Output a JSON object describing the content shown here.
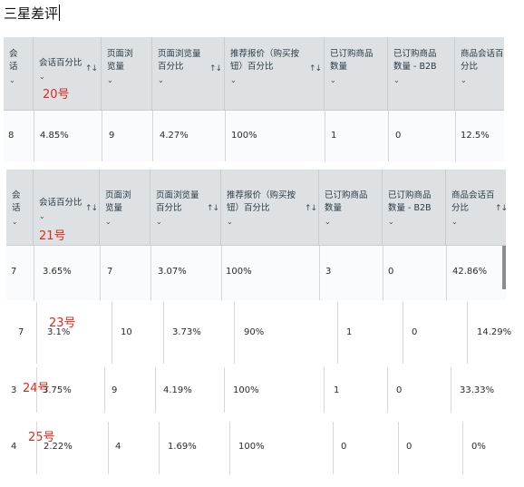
{
  "title": "三星差评",
  "headers": {
    "sessions": [
      "会",
      "话"
    ],
    "session_pct": "会话百分比",
    "page_views": [
      "页面浏",
      "览量"
    ],
    "page_view_pct": [
      "页面浏览量",
      "百分比"
    ],
    "featured_offer": [
      "推荐报价（购买按",
      "钮）百分比"
    ],
    "units_ordered": [
      "已订购商品",
      "数量"
    ],
    "units_b2b": [
      "已订购商品",
      "数量 - B2B"
    ],
    "unit_session_pct": [
      "商品会话百",
      "分比"
    ]
  },
  "sort_glyph": "↑↓",
  "chevron": "⌄",
  "days": [
    "20号",
    "21号",
    "23号",
    "24号",
    "25号"
  ],
  "rows": [
    {
      "sessions": "8",
      "session_pct": "4.85%",
      "page_views": "9",
      "page_view_pct": "4.27%",
      "featured_offer": "100%",
      "units_ordered": "1",
      "units_b2b": "0",
      "unit_session_pct": "12.5%"
    },
    {
      "sessions": "7",
      "session_pct": "3.65%",
      "page_views": "7",
      "page_view_pct": "3.07%",
      "featured_offer": "100%",
      "units_ordered": "3",
      "units_b2b": "0",
      "unit_session_pct": "42.86%"
    },
    {
      "sessions": "7",
      "session_pct": "3.1%",
      "page_views": "10",
      "page_view_pct": "3.73%",
      "featured_offer": "90%",
      "units_ordered": "1",
      "units_b2b": "0",
      "unit_session_pct": "14.29%"
    },
    {
      "sessions": "3",
      "session_pct": "3.75%",
      "page_views": "9",
      "page_view_pct": "4.19%",
      "featured_offer": "100%",
      "units_ordered": "1",
      "units_b2b": "0",
      "unit_session_pct": "33.33%"
    },
    {
      "sessions": "4",
      "session_pct": "2.22%",
      "page_views": "4",
      "page_view_pct": "1.69%",
      "featured_offer": "100%",
      "units_ordered": "0",
      "units_b2b": "0",
      "unit_session_pct": "0%"
    }
  ]
}
